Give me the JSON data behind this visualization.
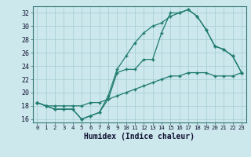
{
  "xlabel": "Humidex (Indice chaleur)",
  "bg_color": "#cce8ec",
  "line_color": "#1e7a6e",
  "grid_color": "#aad0d8",
  "xlim": [
    -0.5,
    23.5
  ],
  "ylim": [
    15.5,
    33.0
  ],
  "yticks": [
    16,
    18,
    20,
    22,
    24,
    26,
    28,
    30,
    32
  ],
  "xticks": [
    0,
    1,
    2,
    3,
    4,
    5,
    6,
    7,
    8,
    9,
    10,
    11,
    12,
    13,
    14,
    15,
    16,
    17,
    18,
    19,
    20,
    21,
    22,
    23
  ],
  "line1_x": [
    0,
    1,
    2,
    3,
    4,
    5,
    6,
    7,
    8,
    9,
    10,
    11,
    12,
    13,
    14,
    15,
    16,
    17,
    18,
    19,
    20,
    21,
    22,
    23
  ],
  "line1_y": [
    18.5,
    18.0,
    17.5,
    17.5,
    17.5,
    16.0,
    16.5,
    17.0,
    19.0,
    23.0,
    23.5,
    23.5,
    25.0,
    25.0,
    29.0,
    32.0,
    32.0,
    32.5,
    31.5,
    29.5,
    27.0,
    26.5,
    25.5,
    23.0
  ],
  "line2_x": [
    0,
    1,
    2,
    3,
    4,
    5,
    6,
    7,
    8,
    9,
    10,
    11,
    12,
    13,
    14,
    15,
    16,
    17,
    18,
    19,
    20,
    21,
    22,
    23
  ],
  "line2_y": [
    18.5,
    18.0,
    17.5,
    17.5,
    17.5,
    16.0,
    16.5,
    17.0,
    19.5,
    23.5,
    25.5,
    27.5,
    29.0,
    30.0,
    30.5,
    31.5,
    32.0,
    32.5,
    31.5,
    29.5,
    27.0,
    26.5,
    25.5,
    23.0
  ],
  "line3_x": [
    0,
    1,
    2,
    3,
    4,
    5,
    6,
    7,
    8,
    9,
    10,
    11,
    12,
    13,
    14,
    15,
    16,
    17,
    18,
    19,
    20,
    21,
    22,
    23
  ],
  "line3_y": [
    18.5,
    18.0,
    18.0,
    18.0,
    18.0,
    18.0,
    18.5,
    18.5,
    19.0,
    19.5,
    20.0,
    20.5,
    21.0,
    21.5,
    22.0,
    22.5,
    22.5,
    23.0,
    23.0,
    23.0,
    22.5,
    22.5,
    22.5,
    23.0
  ],
  "tick_fontsize": 6.0,
  "xlabel_fontsize": 7.0
}
